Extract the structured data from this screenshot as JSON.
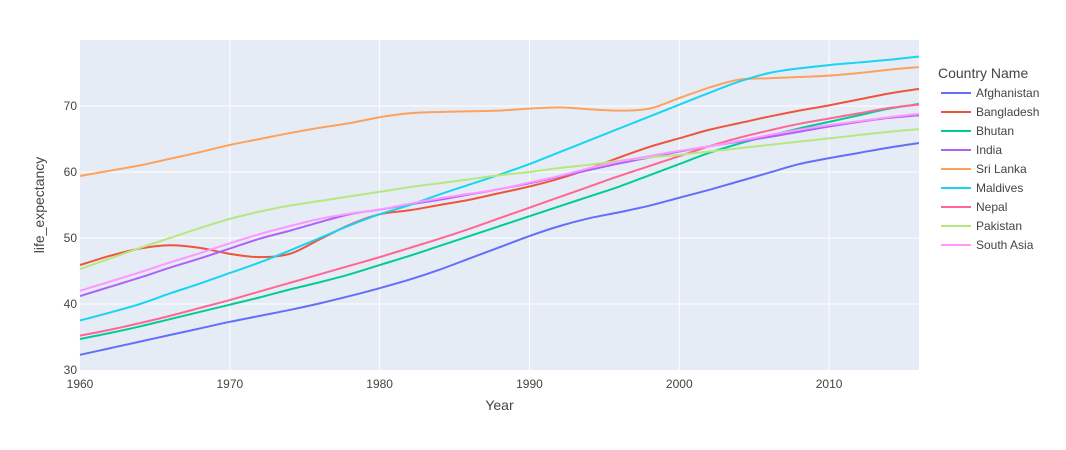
{
  "chart_data": {
    "type": "line",
    "title": "",
    "xlabel": "Year",
    "ylabel": "life_expectancy",
    "xlim": [
      1960,
      2016
    ],
    "ylim": [
      30,
      80
    ],
    "x_ticks": [
      1960,
      1970,
      1980,
      1990,
      2000,
      2010
    ],
    "y_ticks": [
      30,
      40,
      50,
      60,
      70
    ],
    "grid": true,
    "legend_title": "Country Name",
    "legend_position": "right",
    "x": [
      1960,
      1962,
      1964,
      1966,
      1968,
      1970,
      1972,
      1974,
      1976,
      1978,
      1980,
      1982,
      1984,
      1986,
      1988,
      1990,
      1992,
      1994,
      1996,
      1998,
      2000,
      2002,
      2004,
      2006,
      2008,
      2010,
      2012,
      2014,
      2016
    ],
    "series": [
      {
        "name": "Afghanistan",
        "color": "#636efa",
        "values": [
          32.3,
          33.3,
          34.3,
          35.3,
          36.3,
          37.3,
          38.2,
          39.1,
          40.1,
          41.2,
          42.4,
          43.7,
          45.2,
          46.9,
          48.6,
          50.3,
          51.8,
          53.0,
          53.9,
          54.9,
          56.1,
          57.3,
          58.6,
          59.9,
          61.2,
          62.1,
          62.9,
          63.7,
          64.4
        ]
      },
      {
        "name": "Bangladesh",
        "color": "#ef553b",
        "values": [
          45.9,
          47.3,
          48.4,
          48.9,
          48.5,
          47.6,
          47.1,
          47.6,
          49.8,
          52.0,
          53.6,
          54.2,
          55.0,
          55.8,
          56.8,
          57.8,
          59.0,
          60.5,
          62.2,
          63.8,
          65.1,
          66.4,
          67.4,
          68.4,
          69.3,
          70.1,
          71.0,
          71.9,
          72.6
        ]
      },
      {
        "name": "Bhutan",
        "color": "#00cc96",
        "values": [
          34.7,
          35.6,
          36.6,
          37.7,
          38.8,
          39.9,
          41.0,
          42.2,
          43.3,
          44.5,
          45.9,
          47.3,
          48.8,
          50.3,
          51.8,
          53.3,
          54.8,
          56.3,
          57.8,
          59.5,
          61.2,
          62.9,
          64.3,
          65.5,
          66.6,
          67.6,
          68.6,
          69.6,
          70.3
        ]
      },
      {
        "name": "India",
        "color": "#ab63fa",
        "values": [
          41.2,
          42.6,
          44.0,
          45.5,
          46.9,
          48.4,
          49.9,
          51.1,
          52.4,
          53.6,
          54.3,
          55.1,
          55.8,
          56.6,
          57.4,
          58.3,
          59.3,
          60.3,
          61.3,
          62.2,
          63.1,
          63.9,
          64.6,
          65.3,
          66.1,
          66.9,
          67.6,
          68.2,
          68.6
        ]
      },
      {
        "name": "Sri Lanka",
        "color": "#ffa15a",
        "values": [
          59.4,
          60.2,
          61.0,
          62.0,
          63.0,
          64.1,
          65.0,
          65.9,
          66.7,
          67.4,
          68.3,
          68.9,
          69.1,
          69.2,
          69.3,
          69.6,
          69.8,
          69.5,
          69.3,
          69.6,
          71.2,
          72.8,
          74.0,
          74.2,
          74.4,
          74.6,
          75.0,
          75.5,
          75.9
        ]
      },
      {
        "name": "Maldives",
        "color": "#19d3f3",
        "values": [
          37.5,
          38.7,
          40.0,
          41.6,
          43.1,
          44.7,
          46.3,
          48.1,
          50.0,
          51.9,
          53.6,
          55.0,
          56.6,
          58.1,
          59.6,
          61.2,
          63.0,
          64.8,
          66.6,
          68.4,
          70.2,
          72.0,
          73.7,
          75.0,
          75.7,
          76.2,
          76.6,
          77.0,
          77.5
        ]
      },
      {
        "name": "Nepal",
        "color": "#ff6692",
        "values": [
          35.2,
          36.1,
          37.1,
          38.2,
          39.4,
          40.6,
          41.9,
          43.2,
          44.5,
          45.8,
          47.1,
          48.5,
          49.9,
          51.4,
          53.0,
          54.6,
          56.2,
          57.8,
          59.4,
          60.9,
          62.4,
          63.9,
          65.2,
          66.3,
          67.3,
          68.1,
          68.9,
          69.7,
          70.2
        ]
      },
      {
        "name": "Pakistan",
        "color": "#b6e880",
        "values": [
          45.3,
          46.9,
          48.5,
          50.0,
          51.5,
          52.9,
          54.0,
          54.9,
          55.6,
          56.3,
          57.0,
          57.7,
          58.3,
          58.9,
          59.5,
          60.0,
          60.6,
          61.1,
          61.7,
          62.2,
          62.6,
          63.1,
          63.6,
          64.1,
          64.6,
          65.1,
          65.6,
          66.1,
          66.5
        ]
      },
      {
        "name": "South Asia",
        "color": "#ff97ff",
        "values": [
          42.0,
          43.4,
          44.8,
          46.3,
          47.7,
          49.2,
          50.6,
          51.8,
          52.9,
          53.7,
          54.3,
          55.2,
          56.0,
          56.7,
          57.4,
          58.4,
          59.4,
          60.6,
          61.6,
          62.4,
          63.2,
          63.9,
          64.7,
          65.6,
          66.4,
          67.1,
          67.7,
          68.3,
          68.8
        ]
      }
    ]
  }
}
